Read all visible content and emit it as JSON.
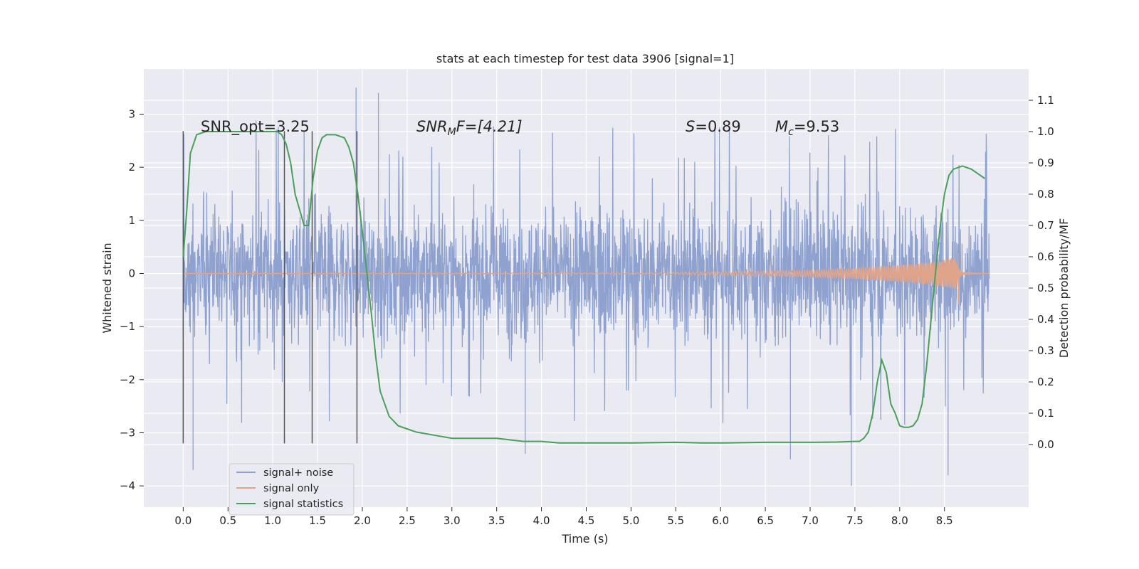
{
  "chart_data": {
    "type": "line",
    "title": "stats at each timestep for test data 3906 [signal=1]",
    "xlabel": "Time (s)",
    "ylabel_left": "Whitened strain",
    "ylabel_right": "Detection probability/MF",
    "xlim": [
      -0.44,
      9.44
    ],
    "ylim_left": [
      -4.4,
      3.85
    ],
    "ylim_right": [
      -0.2,
      1.2
    ],
    "x_ticks": [
      0.0,
      0.5,
      1.0,
      1.5,
      2.0,
      2.5,
      3.0,
      3.5,
      4.0,
      4.5,
      5.0,
      5.5,
      6.0,
      6.5,
      7.0,
      7.5,
      8.0,
      8.5
    ],
    "x_tick_labels": [
      "0.0",
      "0.5",
      "1.0",
      "1.5",
      "2.0",
      "2.5",
      "3.0",
      "3.5",
      "4.0",
      "4.5",
      "5.0",
      "5.5",
      "6.0",
      "6.5",
      "7.0",
      "7.5",
      "8.0",
      "8.5"
    ],
    "y_ticks_left": [
      -4,
      -3,
      -2,
      -1,
      0,
      1,
      2,
      3
    ],
    "y_tick_labels_left": [
      "−4",
      "−3",
      "−2",
      "−1",
      "0",
      "1",
      "2",
      "3"
    ],
    "y_ticks_right": [
      0.0,
      0.1,
      0.2,
      0.3,
      0.4,
      0.5,
      0.6,
      0.7,
      0.8,
      0.9,
      1.0,
      1.1
    ],
    "y_tick_labels_right": [
      "0.0",
      "0.1",
      "0.2",
      "0.3",
      "0.4",
      "0.5",
      "0.6",
      "0.7",
      "0.8",
      "0.9",
      "1.0",
      "1.1"
    ],
    "grid": true,
    "legend_position": "lower-left",
    "series": [
      {
        "name": "signal+ noise",
        "axis": "left",
        "color": "#8fa2cf",
        "note_values": "dense noisy strain time series",
        "x_range": [
          0.0,
          9.0
        ],
        "typical_range": [
          -1.6,
          1.6
        ],
        "peak_max": 3.5,
        "peak_min": -4.0
      },
      {
        "name": "signal only",
        "axis": "left",
        "color": "#e0a48a",
        "x": [
          0.0,
          5.0,
          6.0,
          7.0,
          7.5,
          8.0,
          8.4,
          8.55,
          8.62,
          8.66,
          8.7,
          9.0
        ],
        "amplitude": [
          0.0,
          0.01,
          0.03,
          0.06,
          0.1,
          0.16,
          0.22,
          0.28,
          0.3,
          0.1,
          0.02,
          0.0
        ],
        "spike": {
          "x": 8.65,
          "max": 0.38,
          "min": -0.58
        }
      },
      {
        "name": "signal statistics",
        "axis": "right",
        "color": "#4aa05a",
        "x": [
          0.0,
          0.04,
          0.08,
          0.15,
          0.25,
          0.4,
          0.6,
          0.8,
          1.0,
          1.05,
          1.1,
          1.15,
          1.2,
          1.25,
          1.3,
          1.35,
          1.4,
          1.45,
          1.5,
          1.55,
          1.6,
          1.7,
          1.8,
          1.85,
          1.9,
          1.95,
          2.0,
          2.05,
          2.1,
          2.15,
          2.2,
          2.3,
          2.4,
          2.5,
          2.6,
          2.8,
          3.0,
          3.2,
          3.5,
          3.8,
          4.0,
          4.2,
          4.5,
          5.0,
          5.5,
          5.8,
          6.0,
          6.5,
          7.0,
          7.3,
          7.5,
          7.55,
          7.6,
          7.65,
          7.7,
          7.75,
          7.8,
          7.85,
          7.9,
          7.95,
          8.0,
          8.05,
          8.1,
          8.15,
          8.2,
          8.25,
          8.3,
          8.35,
          8.4,
          8.45,
          8.5,
          8.55,
          8.6,
          8.7,
          8.8,
          8.9,
          8.95
        ],
        "values": [
          0.6,
          0.75,
          0.93,
          0.99,
          1.0,
          1.0,
          1.0,
          1.0,
          1.0,
          1.0,
          0.99,
          0.96,
          0.9,
          0.8,
          0.75,
          0.7,
          0.7,
          0.85,
          0.94,
          0.98,
          0.99,
          0.99,
          0.98,
          0.95,
          0.9,
          0.8,
          0.68,
          0.55,
          0.42,
          0.28,
          0.17,
          0.09,
          0.06,
          0.05,
          0.04,
          0.03,
          0.02,
          0.02,
          0.02,
          0.01,
          0.01,
          0.005,
          0.005,
          0.005,
          0.007,
          0.005,
          0.005,
          0.007,
          0.007,
          0.008,
          0.01,
          0.01,
          0.02,
          0.04,
          0.1,
          0.2,
          0.27,
          0.23,
          0.13,
          0.1,
          0.06,
          0.055,
          0.055,
          0.06,
          0.08,
          0.13,
          0.25,
          0.4,
          0.55,
          0.69,
          0.8,
          0.86,
          0.88,
          0.89,
          0.88,
          0.86,
          0.85
        ]
      }
    ],
    "vertical_lines": [
      {
        "x": 0.0,
        "ymin": -3.2,
        "ymax": 2.68
      },
      {
        "x": 1.13,
        "ymin": -3.2,
        "ymax": 2.68
      },
      {
        "x": 1.44,
        "ymin": -3.2,
        "ymax": 2.68
      },
      {
        "x": 1.94,
        "ymin": -3.2,
        "ymax": 2.68
      }
    ],
    "annotations": {
      "snr_opt": "SNR_opt=3.25",
      "snr_mf_main": "SNR",
      "snr_mf_sub": "M",
      "snr_mf_rest": "F=[4.21]",
      "s_main": "S",
      "s_rest": "=0.89",
      "mc_main": "M",
      "mc_sub": "c",
      "mc_rest": "=9.53"
    },
    "colors": {
      "plot_background": "#eaeaf2",
      "grid": "#ffffff",
      "vertical_line": "#555555"
    }
  }
}
